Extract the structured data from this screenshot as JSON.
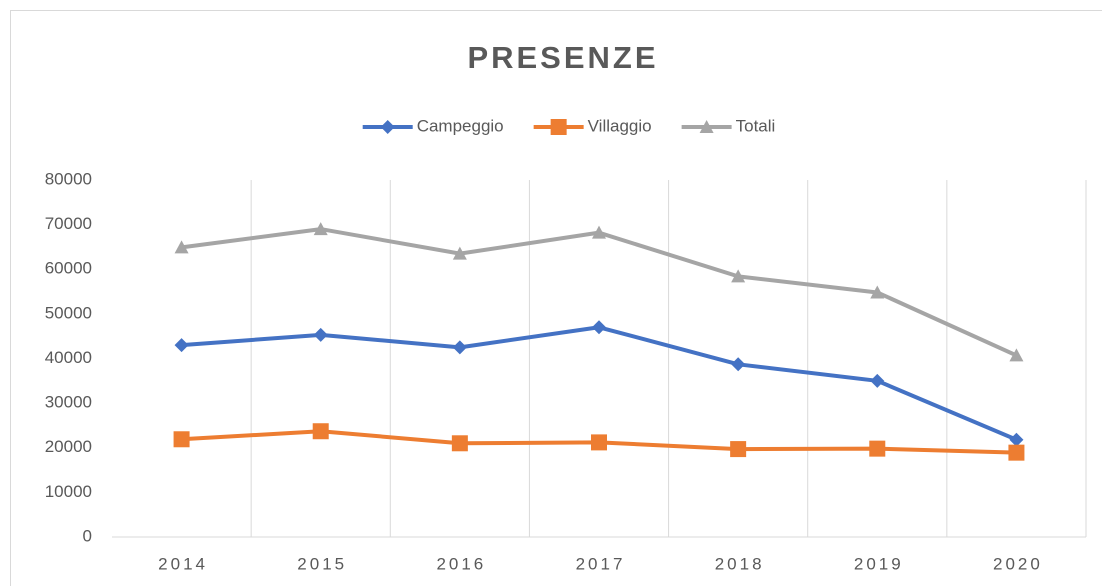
{
  "chart_data": {
    "type": "line",
    "title": "PRESENZE",
    "categories": [
      "2014",
      "2015",
      "2016",
      "2017",
      "2018",
      "2019",
      "2020"
    ],
    "series": [
      {
        "name": "Campeggio",
        "color": "#4472c4",
        "marker": "diamond",
        "values": [
          43000,
          45300,
          42500,
          47000,
          38700,
          35000,
          21800
        ]
      },
      {
        "name": "Villaggio",
        "color": "#ed7d31",
        "marker": "square",
        "values": [
          21900,
          23700,
          21000,
          21200,
          19700,
          19800,
          18900
        ]
      },
      {
        "name": "Totali",
        "color": "#a5a5a5",
        "marker": "triangle",
        "values": [
          64900,
          69000,
          63500,
          68200,
          58400,
          54800,
          40700
        ]
      }
    ],
    "ylim": [
      0,
      80000
    ],
    "yticks": [
      0,
      10000,
      20000,
      30000,
      40000,
      50000,
      60000,
      70000,
      80000
    ],
    "legend": "top"
  }
}
